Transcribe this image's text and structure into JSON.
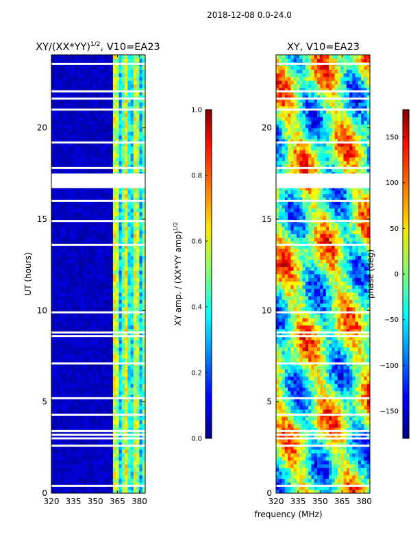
{
  "figure_title": "2018-12-08 0.0-24.0",
  "xlabel": "frequency (MHz)",
  "chart_data": [
    {
      "type": "heatmap",
      "title": "XY/(XX*YY)^1/2, V10=EA23",
      "title_main": "XY/(XX*YY)",
      "title_exp": "1/2",
      "title_tail": ", V10=EA23",
      "ylabel": "UT (hours)",
      "xlim": [
        320,
        384
      ],
      "ylim": [
        0,
        24
      ],
      "xticks": [
        "320",
        "335",
        "350",
        "365",
        "380"
      ],
      "yticks": [
        "0",
        "5",
        "10",
        "15",
        "20"
      ],
      "colorbar": {
        "label": "XY amp. / (XX*YY amp)^1/2",
        "label_main": "XY amp. / (XX*YY amp)",
        "label_exp": "1/2",
        "range": [
          0.0,
          1.0
        ],
        "ticks": [
          "0.0",
          "0.2",
          "0.4",
          "0.6",
          "0.8",
          "1.0"
        ]
      },
      "colormap": "jet",
      "masked_intervals_hours": [
        [
          16.7,
          17.5
        ]
      ],
      "masked_row_lines_hours": [
        0.4,
        2.6,
        3.0,
        3.2,
        3.4,
        4.3,
        5.2,
        7.1,
        8.6,
        8.8,
        9.9,
        13.6,
        14.9,
        16.0,
        17.8,
        19.2,
        21.0,
        21.6,
        22.0,
        23.5
      ]
    },
    {
      "type": "heatmap",
      "title": "XY, V10=EA23",
      "ylabel": "",
      "xlim": [
        320,
        384
      ],
      "ylim": [
        0,
        24
      ],
      "xticks": [
        "320",
        "335",
        "350",
        "365",
        "380"
      ],
      "yticks": [
        "0",
        "5",
        "10",
        "15",
        "20"
      ],
      "colorbar": {
        "label": "phase (deg)",
        "range": [
          -180,
          180
        ],
        "ticks": [
          "−150",
          "−100",
          "−50",
          "0",
          "50",
          "100",
          "150"
        ],
        "tick_values": [
          -150,
          -100,
          -50,
          0,
          50,
          100,
          150
        ]
      },
      "colormap": "jet",
      "masked_intervals_hours": [
        [
          16.7,
          17.5
        ]
      ],
      "masked_row_lines_hours": [
        0.4,
        2.6,
        3.0,
        3.2,
        3.4,
        4.3,
        5.2,
        7.1,
        8.6,
        8.8,
        9.9,
        13.6,
        14.9,
        16.0,
        17.8,
        19.2,
        21.0,
        21.6,
        22.0,
        23.5
      ]
    }
  ]
}
